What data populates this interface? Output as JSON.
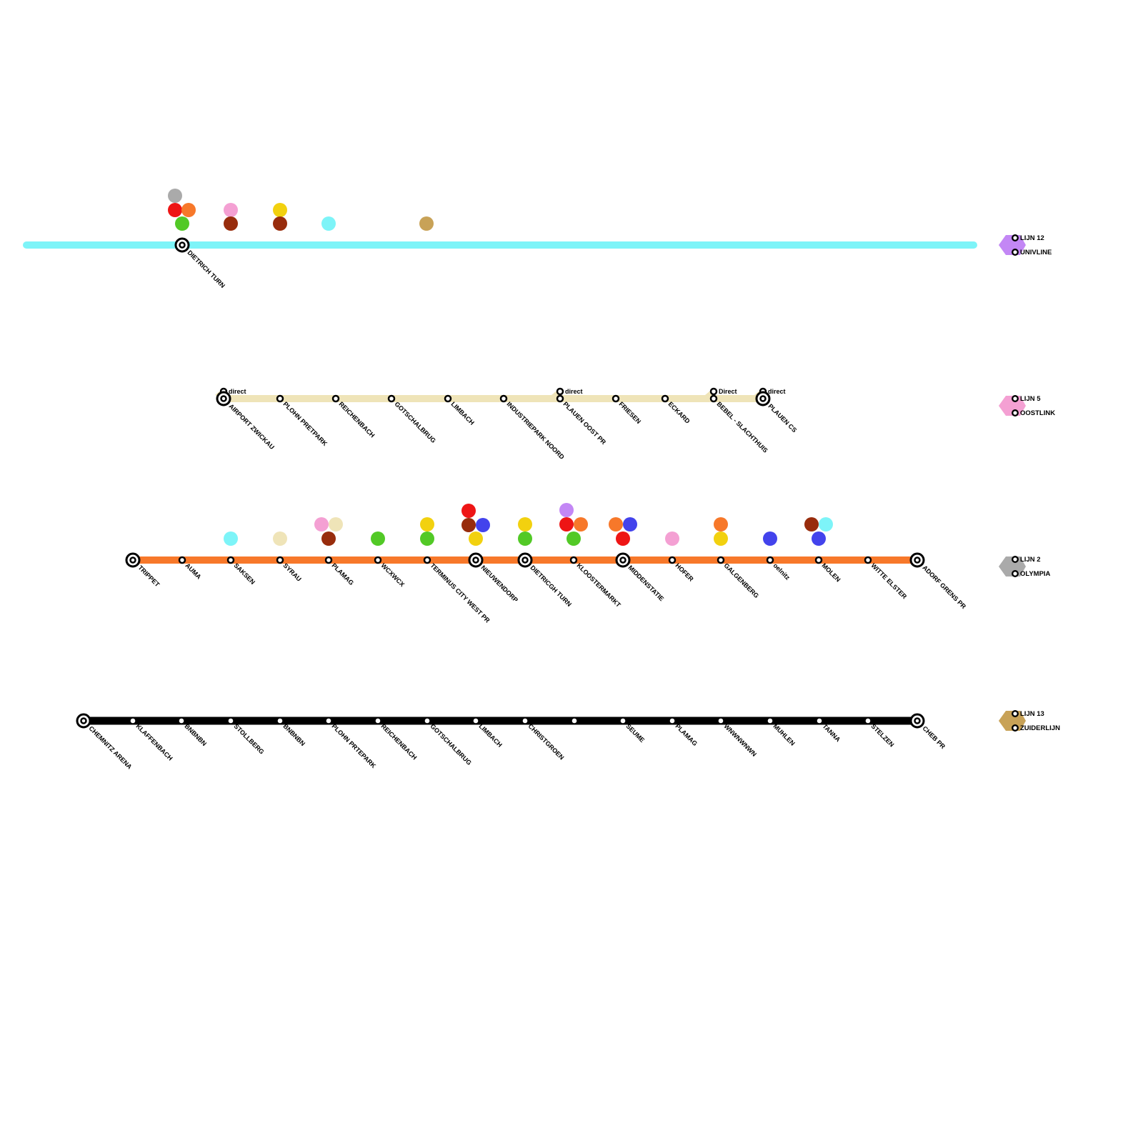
{
  "colors": {
    "cyan": "#7df4f8",
    "cream": "#efe4b8",
    "orange": "#f7782a",
    "black": "#000000",
    "purple": "#c387f5",
    "pink": "#f4a0d3",
    "gray": "#aaaaaa",
    "tan": "#c8a257",
    "red": "#ee1515",
    "green": "#52c926",
    "yellow": "#f2d10f",
    "brown": "#982c0c",
    "blue": "#4343ec"
  },
  "lines": [
    {
      "id": "cyan-line",
      "color": "cyan",
      "stations": [
        {
          "name": "DIETRICH TURN",
          "interchange": true
        }
      ],
      "transfers": [
        [
          "gray",
          "red",
          "orange",
          "green"
        ],
        [
          "pink",
          "brown"
        ],
        [
          "yellow",
          "brown"
        ],
        [
          "cyan"
        ],
        [
          "tan"
        ]
      ]
    },
    {
      "id": "cream-line",
      "color": "cream",
      "stations": [
        {
          "name": "AIRPORT ZWICKAU",
          "interchange": true,
          "branch": "direct"
        },
        {
          "name": "PLOHN PRETPARK"
        },
        {
          "name": "REICHENBACH"
        },
        {
          "name": "GOTSCHALBRUG"
        },
        {
          "name": "LIMBACH"
        },
        {
          "name": "INDUSTRIEPARK NOORD"
        },
        {
          "name": "PLAUEN OOST PR",
          "branch": "direct"
        },
        {
          "name": "FRIESEN"
        },
        {
          "name": "ECKARD"
        },
        {
          "name": "BEBEL - SLACHTHUIS",
          "branch": "Direct"
        },
        {
          "name": "PLAUEN CS",
          "interchange": true,
          "branch": "direct"
        }
      ]
    },
    {
      "id": "orange-line",
      "color": "orange",
      "stations": [
        {
          "name": "TRIPPET",
          "interchange": true,
          "transfers": []
        },
        {
          "name": "AUMA",
          "transfers": []
        },
        {
          "name": "SAKSEN",
          "transfers": [
            "cyan"
          ]
        },
        {
          "name": "SYRAU",
          "transfers": [
            "cream"
          ]
        },
        {
          "name": "PLAMAG",
          "transfers": [
            "pink",
            "cream",
            "brown"
          ]
        },
        {
          "name": "WCXWCX",
          "transfers": [
            "green"
          ]
        },
        {
          "name": "TERMINUS CITY WEST PR",
          "transfers": [
            "yellow",
            "green"
          ]
        },
        {
          "name": "NIEUWENDORP",
          "interchange": true,
          "transfers": [
            "red",
            "brown",
            "blue",
            "yellow"
          ]
        },
        {
          "name": "DIETRICGH TURN",
          "interchange": true,
          "transfers": [
            "yellow",
            "green"
          ]
        },
        {
          "name": "KLOOSTERMARKT",
          "transfers": [
            "purple",
            "red",
            "orange",
            "green"
          ]
        },
        {
          "name": "MIDDENSTATIE",
          "interchange": true,
          "transfers": [
            "orange",
            "blue",
            "red"
          ]
        },
        {
          "name": "HOFER",
          "transfers": [
            "pink"
          ]
        },
        {
          "name": "GALGENBERG",
          "transfers": [
            "orange",
            "yellow"
          ]
        },
        {
          "name": "oelnitz",
          "transfers": [
            "blue"
          ]
        },
        {
          "name": "MOLEN",
          "transfers": [
            "brown",
            "cyan",
            "blue"
          ]
        },
        {
          "name": "WITTE ELSTER",
          "transfers": []
        },
        {
          "name": "ADORF GRENS PR",
          "interchange": true,
          "transfers": []
        }
      ]
    },
    {
      "id": "black-line",
      "color": "black",
      "stations": [
        {
          "name": "CHEMNITZ ARENA",
          "interchange": true
        },
        {
          "name": "KLAFFENBACH"
        },
        {
          "name": "BNBNBN"
        },
        {
          "name": "STOLLBERG"
        },
        {
          "name": "BNBNBN"
        },
        {
          "name": "PLOHN PRTEPARK"
        },
        {
          "name": "REICHENBACH"
        },
        {
          "name": "GOTSCHALBRUG"
        },
        {
          "name": "LIMBACH"
        },
        {
          "name": "CHRISTGROEN"
        },
        {
          "name": ""
        },
        {
          "name": "SEUME"
        },
        {
          "name": "PLAMAG"
        },
        {
          "name": "WNWNWNWN"
        },
        {
          "name": "MUHLEN"
        },
        {
          "name": "TANNA"
        },
        {
          "name": "STELZEN"
        },
        {
          "name": "CHEB PR",
          "interchange": true
        }
      ]
    }
  ],
  "legend": [
    {
      "color": "purple",
      "number": "LIJN 12",
      "name": "UNIVLINE"
    },
    {
      "color": "pink",
      "number": "LIJN 5",
      "name": "OOSTLINK"
    },
    {
      "color": "gray",
      "number": "LIJN 2",
      "name": "OLYMPIA"
    },
    {
      "color": "tan",
      "number": "LIJN 13",
      "name": "ZUIDERLIJN"
    }
  ]
}
